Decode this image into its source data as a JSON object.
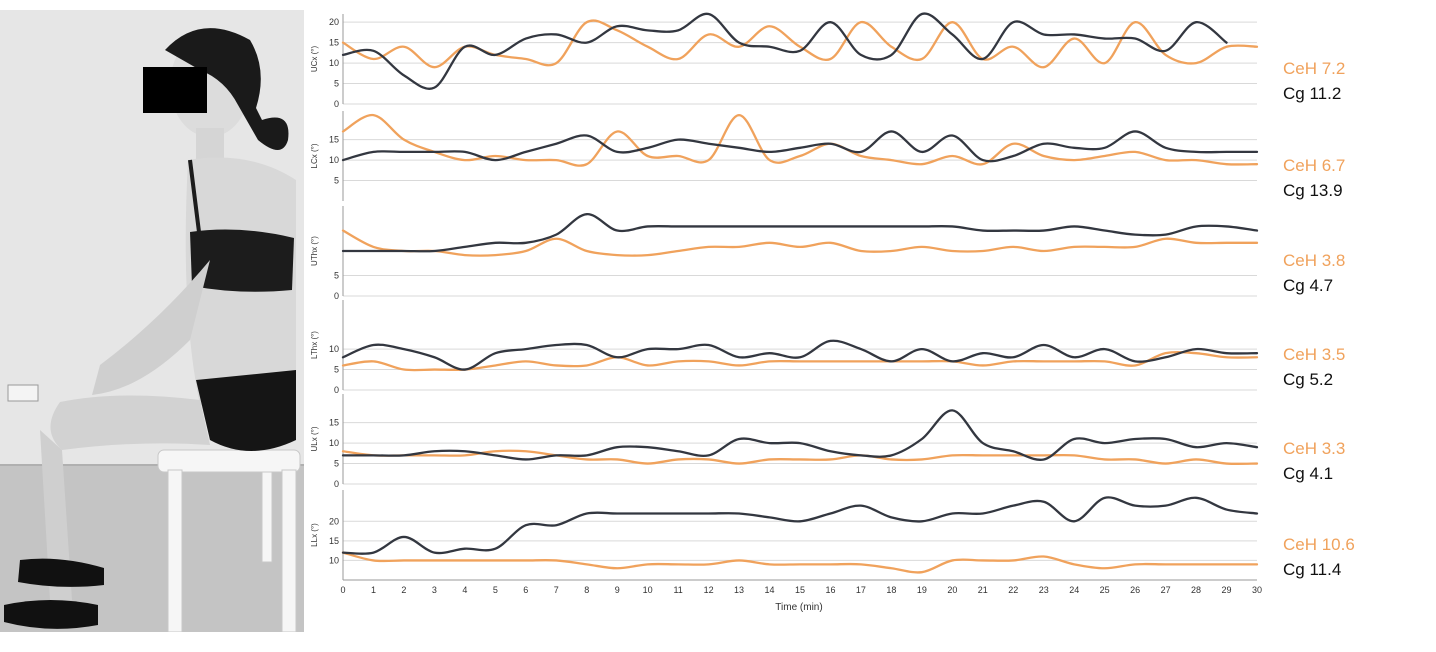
{
  "colors": {
    "ceh": "#f0a25c",
    "cg": "#333740"
  },
  "photo": {
    "description_icon": "seated-posture-photo"
  },
  "chart_data": {
    "type": "line",
    "xlabel": "Time (min)",
    "x": [
      0,
      1,
      2,
      3,
      4,
      5,
      6,
      7,
      8,
      9,
      10,
      11,
      12,
      13,
      14,
      15,
      16,
      17,
      18,
      19,
      20,
      21,
      22,
      23,
      24,
      25,
      26,
      27,
      28,
      29,
      30
    ],
    "panels": [
      {
        "ylabel": "UCx (°)",
        "yticks": [
          0,
          5,
          10,
          15,
          20
        ],
        "ylim": [
          0,
          22
        ],
        "summary": {
          "ceh": "CeH 7.2",
          "cg": "Cg 11.2"
        },
        "series": [
          {
            "key": "ceh",
            "values": [
              15,
              11,
              14,
              9,
              14,
              12,
              11,
              10,
              20,
              18,
              14,
              11,
              17,
              14,
              19,
              14,
              11,
              20,
              14,
              11,
              20,
              11,
              14,
              9,
              16,
              10,
              20,
              12,
              10,
              14,
              14
            ]
          },
          {
            "key": "cg",
            "values": [
              12,
              13,
              7,
              4,
              14,
              12,
              16,
              17,
              15,
              19,
              18,
              18,
              22,
              15,
              14,
              13,
              20,
              12,
              12,
              22,
              17,
              11,
              20,
              17,
              17,
              16,
              16,
              13,
              20,
              15,
              null
            ]
          }
        ]
      },
      {
        "ylabel": "LCx (°)",
        "yticks": [
          5,
          10,
          15
        ],
        "ylim": [
          0,
          22
        ],
        "summary": {
          "ceh": "CeH 6.7",
          "cg": "Cg 13.9"
        },
        "series": [
          {
            "key": "ceh",
            "values": [
              17,
              21,
              15,
              12,
              10,
              11,
              10,
              10,
              9,
              17,
              11,
              11,
              10,
              21,
              10,
              11,
              14,
              11,
              10,
              9,
              11,
              9,
              14,
              11,
              10,
              11,
              12,
              10,
              10,
              9,
              9
            ]
          },
          {
            "key": "cg",
            "values": [
              10,
              12,
              12,
              12,
              12,
              10,
              12,
              14,
              16,
              12,
              13,
              15,
              14,
              13,
              12,
              13,
              14,
              12,
              17,
              12,
              16,
              10,
              11,
              14,
              13,
              13,
              17,
              13,
              12,
              12,
              12
            ]
          }
        ]
      },
      {
        "ylabel": "UThx (°)",
        "yticks": [
          0,
          5
        ],
        "ylim": [
          0,
          22
        ],
        "summary": {
          "ceh": "CeH 3.8",
          "cg": "Cg 4.7"
        },
        "series": [
          {
            "key": "ceh",
            "values": [
              16,
              12,
              11,
              11,
              10,
              10,
              11,
              14,
              11,
              10,
              10,
              11,
              12,
              12,
              13,
              12,
              13,
              11,
              11,
              12,
              11,
              11,
              12,
              11,
              12,
              12,
              12,
              14,
              13,
              13,
              13
            ]
          },
          {
            "key": "cg",
            "values": [
              11,
              11,
              11,
              11,
              12,
              13,
              13,
              15,
              20,
              16,
              17,
              17,
              17,
              17,
              17,
              17,
              17,
              17,
              17,
              17,
              17,
              16,
              16,
              16,
              17,
              16,
              15,
              15,
              17,
              17,
              16
            ]
          }
        ]
      },
      {
        "ylabel": "LThx (°)",
        "yticks": [
          0,
          5,
          10
        ],
        "ylim": [
          0,
          22
        ],
        "summary": {
          "ceh": "CeH 3.5",
          "cg": "Cg 5.2"
        },
        "series": [
          {
            "key": "ceh",
            "values": [
              6,
              7,
              5,
              5,
              5,
              6,
              7,
              6,
              6,
              8,
              6,
              7,
              7,
              6,
              7,
              7,
              7,
              7,
              7,
              7,
              7,
              6,
              7,
              7,
              7,
              7,
              6,
              9,
              9,
              8,
              8
            ]
          },
          {
            "key": "cg",
            "values": [
              8,
              11,
              10,
              8,
              5,
              9,
              10,
              11,
              11,
              8,
              10,
              10,
              11,
              8,
              9,
              8,
              12,
              10,
              7,
              10,
              7,
              9,
              8,
              11,
              8,
              10,
              7,
              8,
              10,
              9,
              9
            ]
          }
        ]
      },
      {
        "ylabel": "ULx (°)",
        "yticks": [
          0,
          5,
          10,
          15
        ],
        "ylim": [
          0,
          22
        ],
        "summary": {
          "ceh": "CeH 3.3",
          "cg": "Cg 4.1"
        },
        "series": [
          {
            "key": "ceh",
            "values": [
              8,
              7,
              7,
              7,
              7,
              8,
              8,
              7,
              6,
              6,
              5,
              6,
              6,
              5,
              6,
              6,
              6,
              7,
              6,
              6,
              7,
              7,
              7,
              7,
              7,
              6,
              6,
              5,
              6,
              5,
              5
            ]
          },
          {
            "key": "cg",
            "values": [
              7,
              7,
              7,
              8,
              8,
              7,
              6,
              7,
              7,
              9,
              9,
              8,
              7,
              11,
              10,
              10,
              8,
              7,
              7,
              11,
              18,
              10,
              8,
              6,
              11,
              10,
              11,
              11,
              9,
              10,
              9
            ]
          }
        ]
      },
      {
        "ylabel": "LLx (°)",
        "yticks": [
          10,
          15,
          20
        ],
        "ylim": [
          5,
          28
        ],
        "summary": {
          "ceh": "CeH 10.6",
          "cg": "Cg 11.4"
        },
        "series": [
          {
            "key": "ceh",
            "values": [
              12,
              10,
              10,
              10,
              10,
              10,
              10,
              10,
              9,
              8,
              9,
              9,
              9,
              10,
              9,
              9,
              9,
              9,
              8,
              7,
              10,
              10,
              10,
              11,
              9,
              8,
              9,
              9,
              9,
              9,
              9
            ]
          },
          {
            "key": "cg",
            "values": [
              12,
              12,
              16,
              12,
              13,
              13,
              19,
              19,
              22,
              22,
              22,
              22,
              22,
              22,
              21,
              20,
              22,
              24,
              21,
              20,
              22,
              22,
              24,
              25,
              20,
              26,
              24,
              24,
              26,
              23,
              22
            ]
          }
        ]
      }
    ]
  }
}
